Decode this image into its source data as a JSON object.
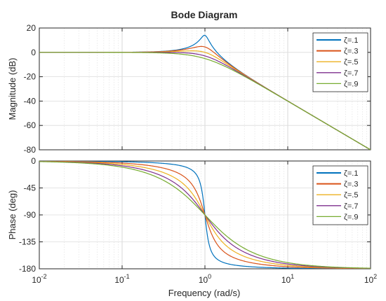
{
  "chart_data": [
    {
      "type": "line",
      "title": "Bode Diagram",
      "xlabel": "",
      "ylabel": "Magnitude (dB)",
      "xscale": "log",
      "xlim": [
        0.01,
        100
      ],
      "ylim": [
        -80,
        20
      ],
      "yticks": [
        20,
        0,
        -20,
        -40,
        -60,
        -80
      ],
      "xticks": [],
      "grid": true,
      "legend": "top-right",
      "transfer_function": "1/(s^2 + 2*zeta*s + 1)",
      "series": [
        {
          "name": "ζ=.1",
          "zeta": 0.1,
          "color": "#0072BD"
        },
        {
          "name": "ζ=.3",
          "zeta": 0.3,
          "color": "#D95319"
        },
        {
          "name": "ζ=.5",
          "zeta": 0.5,
          "color": "#EDB120"
        },
        {
          "name": "ζ=.7",
          "zeta": 0.7,
          "color": "#7E2F8E"
        },
        {
          "name": "ζ=.9",
          "zeta": 0.9,
          "color": "#77AC30"
        }
      ]
    },
    {
      "type": "line",
      "title": "",
      "xlabel": "Frequency (rad/s)",
      "ylabel": "Phase (deg)",
      "xscale": "log",
      "xlim": [
        0.01,
        100
      ],
      "ylim": [
        -180,
        0
      ],
      "yticks": [
        0,
        -45,
        -90,
        -135,
        -180
      ],
      "xticks": [
        {
          "value": 0.01,
          "base": "10",
          "exp": "-2"
        },
        {
          "value": 0.1,
          "base": "10",
          "exp": "-1"
        },
        {
          "value": 1,
          "base": "10",
          "exp": "0"
        },
        {
          "value": 10,
          "base": "10",
          "exp": "1"
        },
        {
          "value": 100,
          "base": "10",
          "exp": "2"
        }
      ],
      "grid": true,
      "legend": "top-right",
      "transfer_function": "1/(s^2 + 2*zeta*s + 1)",
      "series": [
        {
          "name": "ζ=.1",
          "zeta": 0.1,
          "color": "#0072BD"
        },
        {
          "name": "ζ=.3",
          "zeta": 0.3,
          "color": "#D95319"
        },
        {
          "name": "ζ=.5",
          "zeta": 0.5,
          "color": "#EDB120"
        },
        {
          "name": "ζ=.7",
          "zeta": 0.7,
          "color": "#7E2F8E"
        },
        {
          "name": "ζ=.9",
          "zeta": 0.9,
          "color": "#77AC30"
        }
      ]
    }
  ]
}
